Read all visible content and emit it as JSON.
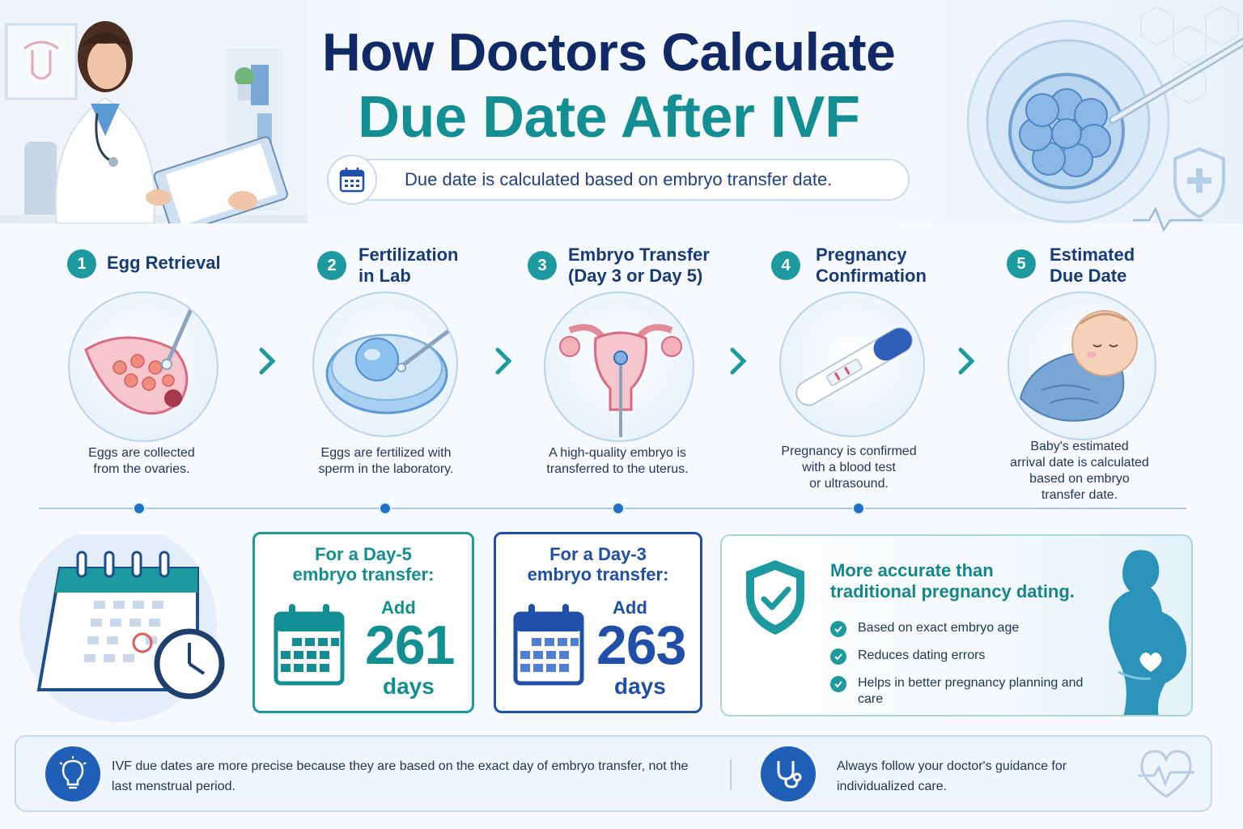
{
  "header": {
    "title_line1": "How Doctors Calculate",
    "title_line2": "Due Date After IVF",
    "subtitle": "Due date is calculated based on embryo transfer date."
  },
  "steps": [
    {
      "number": "1",
      "title": "Egg Retrieval",
      "description": "Eggs are collected\nfrom the ovaries."
    },
    {
      "number": "2",
      "title": "Fertilization\nin Lab",
      "description": "Eggs are fertilized with\nsperm in the laboratory."
    },
    {
      "number": "3",
      "title": "Embryo Transfer\n(Day 3 or Day 5)",
      "description": "A high-quality embryo is\ntransferred to the uterus."
    },
    {
      "number": "4",
      "title": "Pregnancy\nConfirmation",
      "description": "Pregnancy is confirmed\nwith a blood test\nor ultrasound."
    },
    {
      "number": "5",
      "title": "Estimated\nDue Date",
      "description": "Baby's estimated\narrival date is calculated\nbased on embryo\ntransfer date."
    }
  ],
  "transfer_cards": [
    {
      "title": "For a Day-5\nembryo transfer:",
      "add_label": "Add",
      "number": "261",
      "unit": "days",
      "color": "#138f94"
    },
    {
      "title": "For a Day-3\nembryo transfer:",
      "add_label": "Add",
      "number": "263",
      "unit": "days",
      "color": "#1f4fa8"
    }
  ],
  "accuracy": {
    "heading": "More accurate than\ntraditional pregnancy dating.",
    "items": [
      "Based on exact embryo age",
      "Reduces dating errors",
      "Helps in better pregnancy planning and care"
    ]
  },
  "footer": {
    "note_1": "IVF due dates are more precise because they are based on the exact day of embryo transfer, not the last menstrual period.",
    "note_2": "Always follow your doctor's guidance for individualized care."
  },
  "colors": {
    "navy": "#0f2a66",
    "teal": "#138f94",
    "blue": "#1f4fa8",
    "accent_blue": "#1e73c9"
  },
  "icons": [
    "calendar-icon",
    "check-icon",
    "shield-check-icon",
    "lightbulb-icon",
    "stethoscope-icon",
    "heart-pulse-icon",
    "chevron-right-icon"
  ]
}
